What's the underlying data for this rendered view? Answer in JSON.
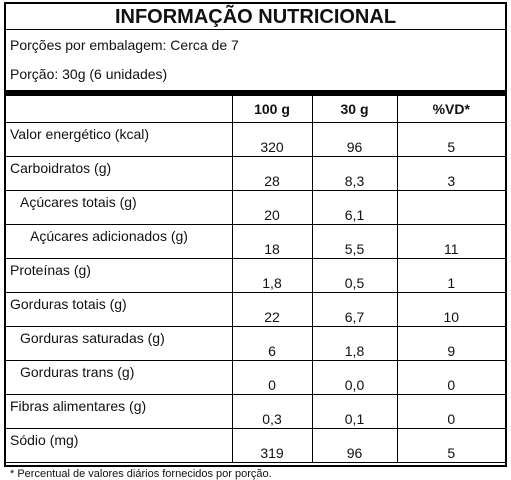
{
  "header": {
    "title": "INFORMAÇÃO NUTRICIONAL",
    "servings": "Porções por embalagem: Cerca de 7",
    "portion": "Porção: 30g (6 unidades)"
  },
  "table": {
    "columns": [
      "100 g",
      "30 g",
      "%VD*"
    ],
    "rows": [
      [
        "Valor energético (kcal)",
        "320",
        "96",
        "5"
      ],
      [
        "Carboidratos (g)",
        "28",
        "8,3",
        "3"
      ],
      [
        "Açúcares totais (g)",
        "20",
        "6,1",
        null
      ],
      [
        "Açúcares adicionados (g)",
        "18",
        "5,5",
        "11"
      ],
      [
        "Proteínas (g)",
        "1,8",
        "0,5",
        "1"
      ],
      [
        "Gorduras totais (g)",
        "22",
        "6,7",
        "10"
      ],
      [
        "Gorduras saturadas (g)",
        "6",
        "1,8",
        "9"
      ],
      [
        "Gorduras trans (g)",
        "0",
        "0,0",
        "0"
      ],
      [
        "Fibras alimentares (g)",
        "0,3",
        "0,1",
        "0"
      ],
      [
        "Sódio (mg)",
        "319",
        "96",
        "5"
      ]
    ]
  },
  "footnote": "* Percentual de valores diários fornecidos por porção."
}
